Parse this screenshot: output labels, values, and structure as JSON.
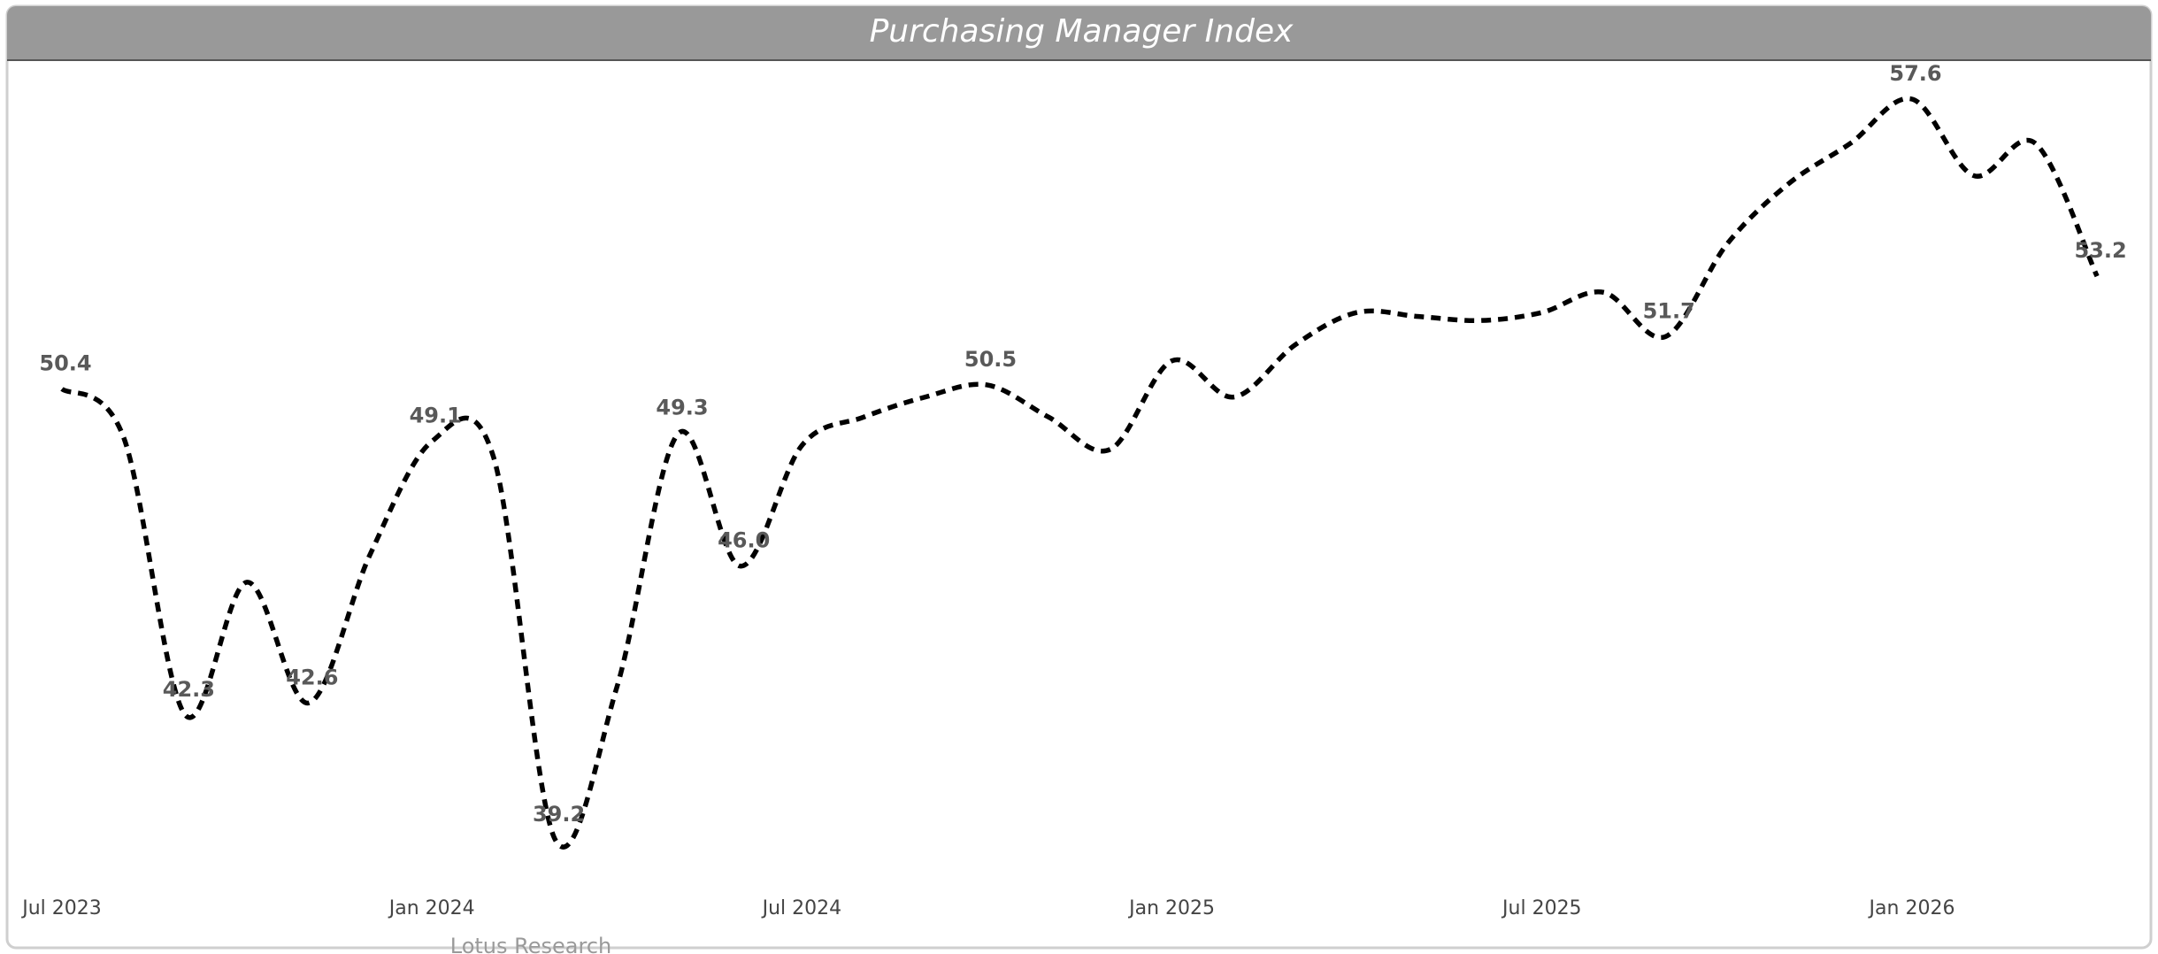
{
  "chart_data": {
    "type": "line",
    "title": "Purchasing Manager Index",
    "categories": [
      "Jul 2023",
      null,
      null,
      null,
      null,
      null,
      "Jan 2024",
      null,
      null,
      null,
      null,
      null,
      "Jul 2024",
      null,
      null,
      null,
      null,
      null,
      "Jan 2025",
      null,
      null,
      null,
      null,
      null,
      "Jul 2025",
      null,
      null,
      null,
      null,
      null,
      "Jan 2026",
      null,
      null,
      null
    ],
    "series": [
      {
        "name": "PMI",
        "color": "#000000",
        "values": [
          50.4,
          49.2,
          42.3,
          45.6,
          42.6,
          46.3,
          49.1,
          48.7,
          39.2,
          43.0,
          49.3,
          46.0,
          49.0,
          49.7,
          50.2,
          50.5,
          49.7,
          48.9,
          51.1,
          50.2,
          51.5,
          52.3,
          52.2,
          52.1,
          52.3,
          52.8,
          51.7,
          54.0,
          55.5,
          56.5,
          57.6,
          55.7,
          56.5,
          53.2
        ],
        "value_labels": [
          "50.4",
          null,
          "42.3",
          null,
          "42.6",
          null,
          "49.1",
          null,
          "39.2",
          null,
          "49.3",
          "46.0",
          null,
          null,
          null,
          "50.5",
          null,
          null,
          null,
          null,
          null,
          null,
          null,
          null,
          null,
          null,
          "51.7",
          null,
          null,
          null,
          "57.6",
          null,
          null,
          "53.2"
        ]
      }
    ],
    "source": "Lotus Research"
  }
}
